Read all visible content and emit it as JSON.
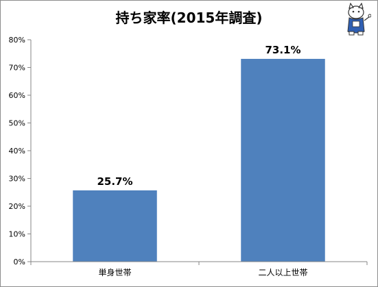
{
  "chart_data": {
    "type": "bar",
    "title": "持ち家率(2015年調査)",
    "categories": [
      "単身世帯",
      "二人以上世帯"
    ],
    "values": [
      25.7,
      73.1
    ],
    "data_labels": [
      "25.7%",
      "73.1%"
    ],
    "ylim": [
      0,
      80
    ],
    "yticks": [
      0,
      10,
      20,
      30,
      40,
      50,
      60,
      70,
      80
    ],
    "ytick_labels": [
      "0%",
      "10%",
      "20%",
      "30%",
      "40%",
      "50%",
      "60%",
      "70%",
      "80%"
    ],
    "grid": false,
    "legend": "none",
    "bar_color": "#4f81bd"
  },
  "decor": {
    "mascot": "cat-mascot-icon"
  }
}
